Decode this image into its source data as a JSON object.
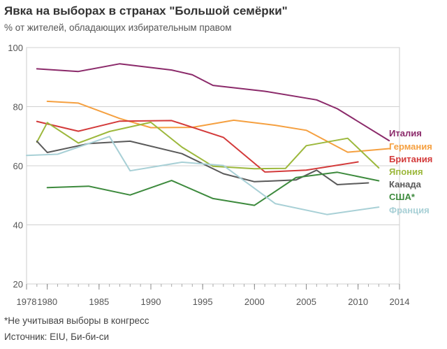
{
  "header": {
    "title": "Явка на выборах в странах \"Большой семёрки\"",
    "subtitle": "% от жителей, обладающих избирательным правом"
  },
  "footer": {
    "footnote": "*Не учитывая выборы в конгресс",
    "source": "Источник: EIU, Би-би-си"
  },
  "chart_data": {
    "type": "line",
    "title": "Явка на выборах в странах \"Большой семёрки\"",
    "subtitle": "% от жителей, обладающих избирательным правом",
    "xlabel": "",
    "ylabel": "",
    "xlim": [
      1978,
      2014
    ],
    "ylim": [
      20,
      100
    ],
    "x_ticks": [
      1978,
      1980,
      1985,
      1990,
      1995,
      2000,
      2005,
      2010,
      2014
    ],
    "y_ticks": [
      20,
      40,
      60,
      80,
      100
    ],
    "grid": "horizontal",
    "legend": "right",
    "series": [
      {
        "name": "Италия",
        "color": "#8b2a6a",
        "x": [
          1979,
          1983,
          1987,
          1992,
          1994,
          1996,
          2001,
          2006,
          2008,
          2013
        ],
        "y": [
          92.8,
          91.9,
          94.5,
          92.4,
          90.8,
          87.2,
          85.2,
          82.3,
          79.3,
          68.5
        ]
      },
      {
        "name": "Германия",
        "color": "#f5a040",
        "x": [
          1980,
          1983,
          1987,
          1990,
          1994,
          1998,
          2002,
          2005,
          2009,
          2013
        ],
        "y": [
          81.8,
          81.2,
          76.0,
          72.9,
          73.0,
          75.4,
          73.7,
          72.0,
          64.6,
          65.8
        ]
      },
      {
        "name": "Британия",
        "color": "#d33a3a",
        "x": [
          1979,
          1983,
          1987,
          1992,
          1997,
          2001,
          2005,
          2010
        ],
        "y": [
          75.0,
          71.7,
          75.1,
          75.3,
          69.6,
          57.9,
          58.5,
          61.3
        ]
      },
      {
        "name": "Япония",
        "color": "#9cb83c",
        "x": [
          1979,
          1980,
          1983,
          1986,
          1990,
          1993,
          1996,
          2000,
          2003,
          2005,
          2009,
          2012
        ],
        "y": [
          68.0,
          74.6,
          67.7,
          71.6,
          74.7,
          66.3,
          59.8,
          59.0,
          59.1,
          66.8,
          69.3,
          59.3
        ]
      },
      {
        "name": "Канада",
        "color": "#5a5a5a",
        "x": [
          1979,
          1980,
          1984,
          1988,
          1993,
          1997,
          2000,
          2004,
          2006,
          2008,
          2011
        ],
        "y": [
          68.3,
          64.5,
          67.5,
          68.3,
          64.1,
          57.3,
          54.6,
          55.2,
          58.5,
          53.6,
          54.2
        ]
      },
      {
        "name": "США*",
        "color": "#3d8a3d",
        "x": [
          1980,
          1984,
          1988,
          1992,
          1996,
          2000,
          2004,
          2008,
          2012
        ],
        "y": [
          52.6,
          53.1,
          50.1,
          55.0,
          48.9,
          46.6,
          56.0,
          57.8,
          54.9
        ]
      },
      {
        "name": "Франция",
        "color": "#a8d0d6",
        "x": [
          1978,
          1981,
          1986,
          1988,
          1993,
          1997,
          2002,
          2007,
          2012
        ],
        "y": [
          63.5,
          63.9,
          69.9,
          58.3,
          61.2,
          60.1,
          47.2,
          43.5,
          46.0
        ]
      }
    ]
  }
}
